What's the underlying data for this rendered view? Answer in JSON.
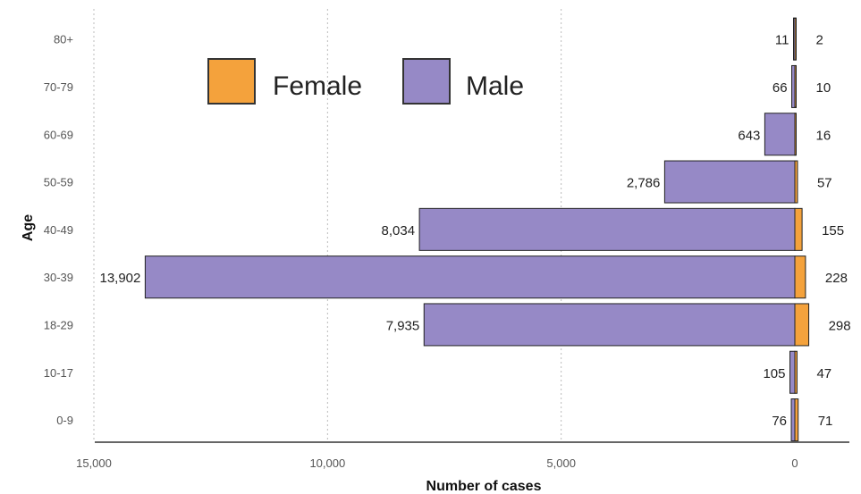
{
  "chart_data": {
    "type": "bar",
    "orientation": "horizontal",
    "title": "",
    "xlabel": "Number of cases",
    "ylabel": "Age",
    "categories": [
      "80+",
      "70-79",
      "60-69",
      "50-59",
      "40-49",
      "30-39",
      "18-29",
      "10-17",
      "0-9"
    ],
    "x_ticks": [
      {
        "value": 15000,
        "label": "15,000"
      },
      {
        "value": 10000,
        "label": "10,000"
      },
      {
        "value": 5000,
        "label": "5,000"
      },
      {
        "value": 0,
        "label": "0"
      }
    ],
    "xlim": [
      15000,
      0
    ],
    "grid": "vertical dotted",
    "legend_position": "top-left",
    "series": [
      {
        "name": "Female",
        "color": "#F4A23C",
        "values": [
          2,
          10,
          16,
          57,
          155,
          228,
          298,
          47,
          71
        ],
        "labels": [
          "2",
          "10",
          "16",
          "57",
          "155",
          "228",
          "298",
          "47",
          "71"
        ]
      },
      {
        "name": "Male",
        "color": "#9689C6",
        "values": [
          11,
          66,
          643,
          2786,
          8034,
          13902,
          7935,
          105,
          76
        ],
        "labels": [
          "11",
          "66",
          "643",
          "2,786",
          "8,034",
          "13,902",
          "7,935",
          "105",
          "76"
        ]
      }
    ]
  }
}
